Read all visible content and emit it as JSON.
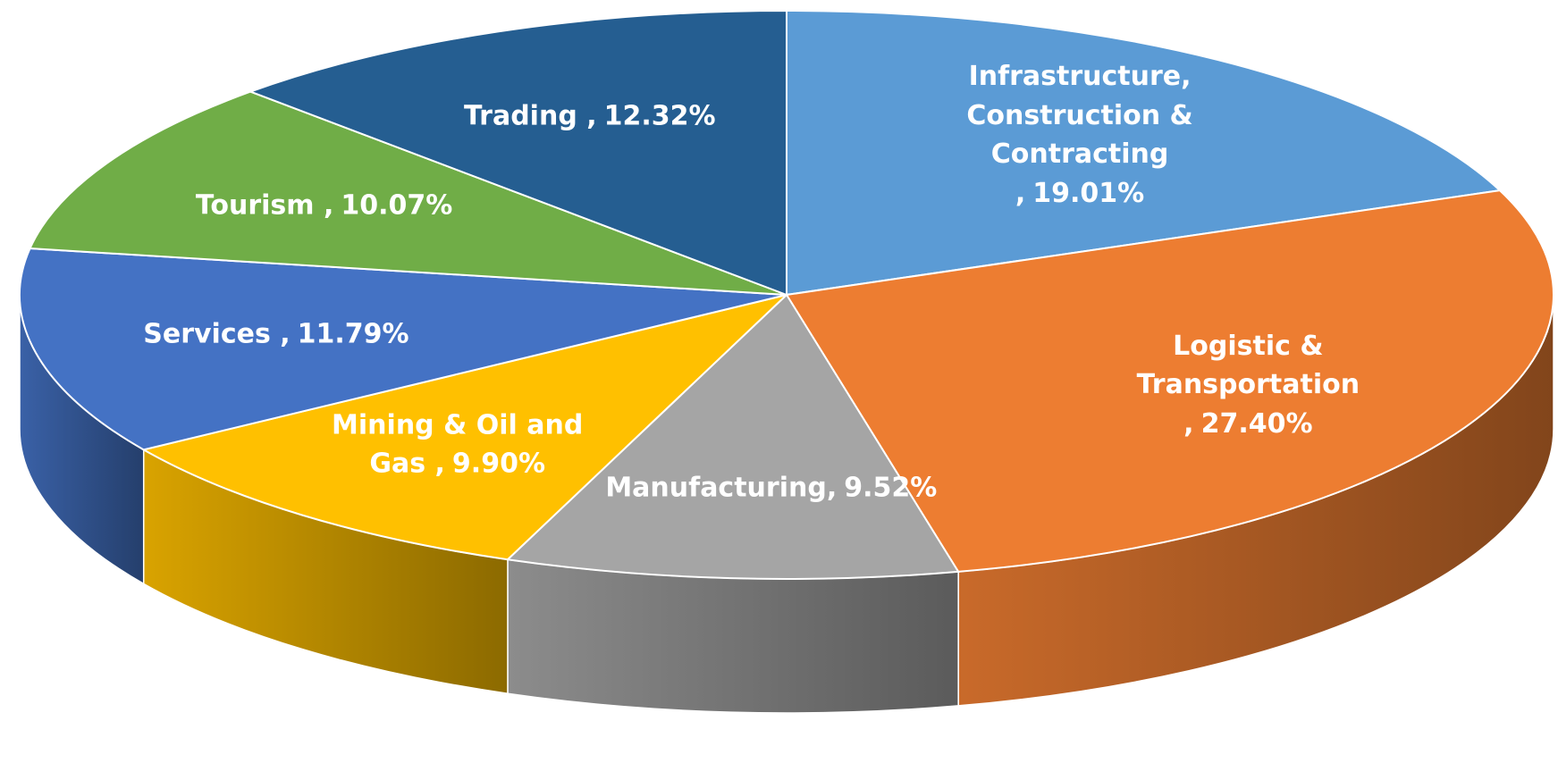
{
  "chart_data": {
    "type": "pie3d",
    "categories": [
      "Infrastructure, Construction & Contracting ,",
      "Logistic & Transportation ,",
      "Manufacturing,",
      "Mining & Oil and Gas ,",
      "Services ,",
      "Tourism ,",
      "Trading  ,"
    ],
    "values": [
      19.01,
      27.4,
      9.52,
      9.9,
      11.79,
      10.07,
      12.32
    ],
    "value_labels": [
      "19.01%",
      "27.40%",
      "9.52%",
      "9.90%",
      "11.79%",
      "10.07%",
      "12.32%"
    ],
    "colors": [
      "#5b9bd5",
      "#ed7d31",
      "#a5a5a5",
      "#ffc000",
      "#4472c4",
      "#70ad47",
      "#255e91"
    ]
  }
}
